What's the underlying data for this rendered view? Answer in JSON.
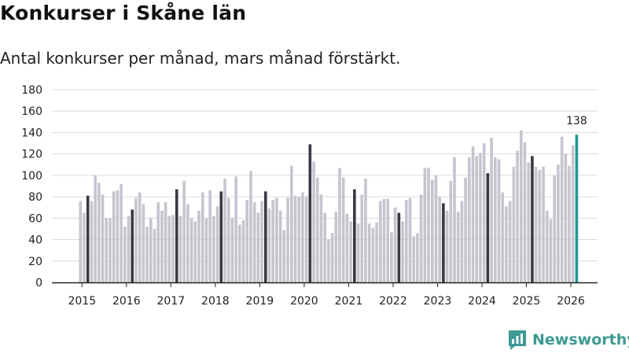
{
  "title": "Konkurser i Skåne län",
  "subtitle": "Antal konkurser per månad, mars månad förstärkt.",
  "brand": {
    "name": "Newsworthy",
    "icon": "newsworthy-logo-icon",
    "color": "#3e9a93"
  },
  "colors": {
    "regular": "#c5c5cf",
    "march": "#3a3942",
    "latest": "#1e9a92",
    "grid": "#dcdcdc",
    "axis": "#222222"
  },
  "chart_data": {
    "type": "bar",
    "title": "Konkurser i Skåne län",
    "subtitle": "Antal konkurser per månad, mars månad förstärkt.",
    "xlabel": "",
    "ylabel": "",
    "ylim": [
      0,
      180
    ],
    "yticks": [
      0,
      20,
      40,
      60,
      80,
      100,
      120,
      140,
      160,
      180
    ],
    "grid": true,
    "xticks": [
      "2015",
      "2016",
      "2017",
      "2018",
      "2019",
      "2020",
      "2021",
      "2022",
      "2023",
      "2024",
      "2025",
      "2026"
    ],
    "start": "2015-01",
    "highlight": "March (month 3) of each year shown dark; latest month shown teal",
    "annotation": {
      "label": "138",
      "month": "2026-03",
      "value": 138
    },
    "series": [
      {
        "name": "Antal konkurser",
        "values": [
          76,
          65,
          81,
          76,
          100,
          93,
          82,
          60,
          60,
          85,
          86,
          92,
          52,
          62,
          68,
          79,
          84,
          73,
          52,
          60,
          50,
          75,
          67,
          75,
          62,
          63,
          87,
          62,
          95,
          73,
          60,
          57,
          67,
          84,
          60,
          86,
          62,
          71,
          85,
          97,
          79,
          60,
          99,
          54,
          58,
          77,
          104,
          75,
          65,
          76,
          85,
          69,
          77,
          79,
          67,
          49,
          79,
          109,
          81,
          80,
          84,
          80,
          129,
          113,
          98,
          82,
          65,
          40,
          46,
          66,
          107,
          98,
          64,
          57,
          87,
          55,
          82,
          97,
          55,
          51,
          56,
          76,
          78,
          78,
          47,
          70,
          65,
          57,
          77,
          79,
          43,
          46,
          82,
          107,
          107,
          96,
          100,
          80,
          74,
          67,
          95,
          117,
          66,
          76,
          98,
          117,
          127,
          118,
          121,
          130,
          102,
          135,
          117,
          115,
          84,
          71,
          76,
          108,
          123,
          142,
          131,
          112,
          118,
          108,
          105,
          108,
          67,
          59,
          100,
          110,
          136,
          120,
          109,
          128,
          138
        ]
      }
    ]
  }
}
